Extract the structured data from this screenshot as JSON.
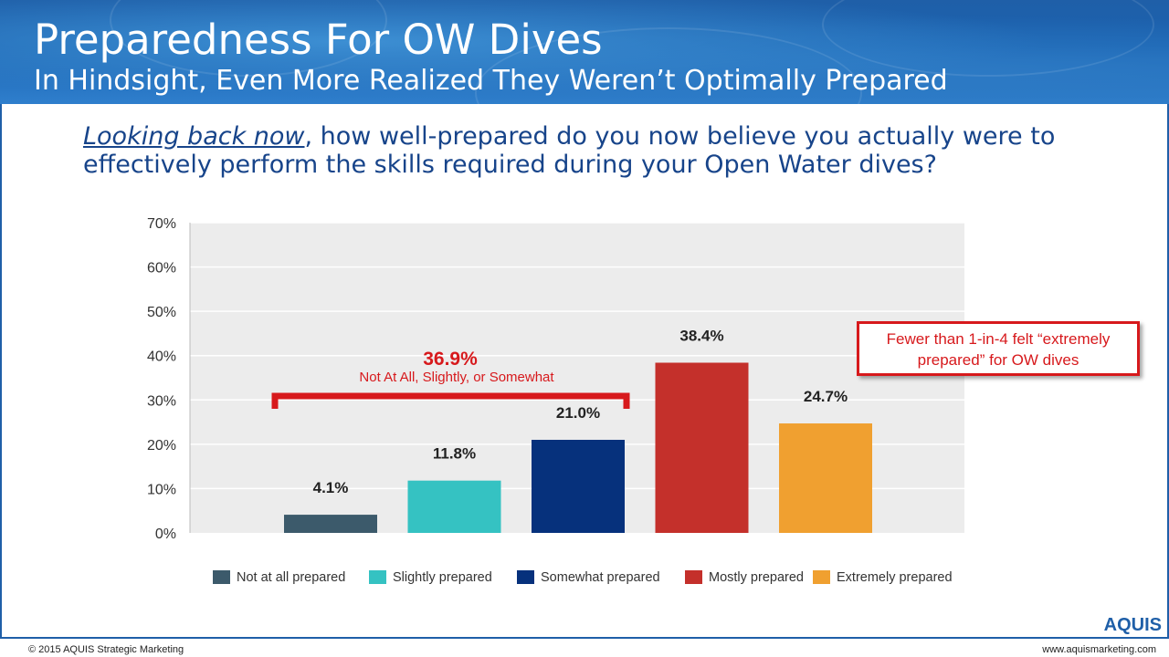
{
  "header": {
    "title": "Preparedness For OW Dives",
    "subtitle": "In Hindsight, Even More Realized They Weren’t Optimally Prepared"
  },
  "question": {
    "lead": "Looking back now",
    "rest": ", how well-prepared do you now believe you actually were to effectively perform the skills required during your Open Water dives?"
  },
  "bracket_annotation": {
    "value": "36.9%",
    "label": "Not At All, Slightly, or Somewhat"
  },
  "callout": {
    "line1": "Fewer than 1-in-4 felt “extremely",
    "line2": "prepared” for OW dives"
  },
  "footer": {
    "copyright": "© 2015 AQUIS Strategic Marketing",
    "website": "www.aquismarketing.com",
    "logo": "AQUIS"
  },
  "colors": {
    "accent_red": "#d7191c",
    "brand_blue": "#1f5fa8"
  },
  "chart_data": {
    "type": "bar",
    "categories": [
      "Not at all prepared",
      "Slightly prepared",
      "Somewhat prepared",
      "Mostly prepared",
      "Extremely prepared"
    ],
    "values": [
      4.1,
      11.8,
      21.0,
      38.4,
      24.7
    ],
    "value_labels": [
      "4.1%",
      "11.8%",
      "21.0%",
      "38.4%",
      "24.7%"
    ],
    "colors": [
      "#3c5a6b",
      "#35c2c2",
      "#06317c",
      "#c4302b",
      "#f0a030"
    ],
    "y_ticks": [
      "0%",
      "10%",
      "20%",
      "30%",
      "40%",
      "50%",
      "60%",
      "70%"
    ],
    "ylim": [
      0,
      70
    ],
    "ylabel": "",
    "xlabel": "",
    "grid": true,
    "legend": "bottom"
  }
}
